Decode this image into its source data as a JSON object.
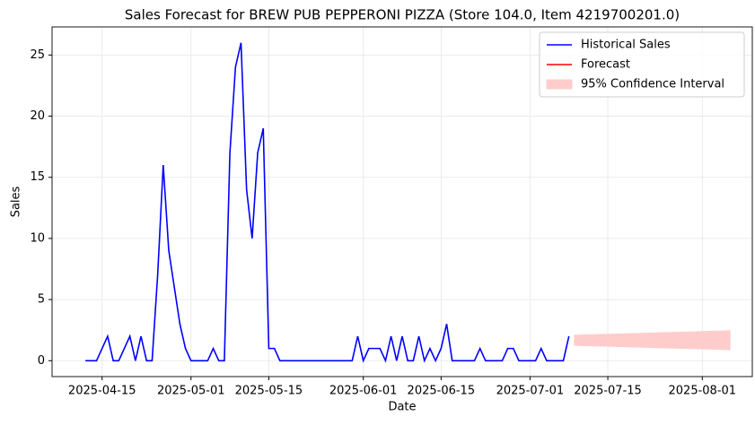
{
  "chart_data": {
    "type": "line",
    "title": "Sales Forecast for BREW PUB PEPPERONI PIZZA (Store 104.0, Item 4219700201.0)",
    "xlabel": "Date",
    "ylabel": "Sales",
    "xlim": [
      "2025-04-06",
      "2025-08-10"
    ],
    "xticks": [
      "2025-04-15",
      "2025-05-01",
      "2025-05-15",
      "2025-06-01",
      "2025-06-15",
      "2025-07-01",
      "2025-07-15",
      "2025-08-01"
    ],
    "ylim": [
      -1.3,
      27.3
    ],
    "yticks": [
      0,
      5,
      10,
      15,
      20,
      25
    ],
    "grid": true,
    "legend": "upper right",
    "series": [
      {
        "name": "Historical Sales",
        "color": "#0000ff",
        "x": [
          "2025-04-12",
          "2025-04-14",
          "2025-04-16",
          "2025-04-17",
          "2025-04-18",
          "2025-04-20",
          "2025-04-21",
          "2025-04-22",
          "2025-04-23",
          "2025-04-24",
          "2025-04-25",
          "2025-04-26",
          "2025-04-27",
          "2025-04-28",
          "2025-04-29",
          "2025-04-30",
          "2025-05-01",
          "2025-05-04",
          "2025-05-05",
          "2025-05-06",
          "2025-05-07",
          "2025-05-08",
          "2025-05-09",
          "2025-05-10",
          "2025-05-11",
          "2025-05-12",
          "2025-05-13",
          "2025-05-14",
          "2025-05-15",
          "2025-05-16",
          "2025-05-17",
          "2025-05-30",
          "2025-05-31",
          "2025-06-01",
          "2025-06-02",
          "2025-06-04",
          "2025-06-05",
          "2025-06-06",
          "2025-06-07",
          "2025-06-08",
          "2025-06-09",
          "2025-06-10",
          "2025-06-11",
          "2025-06-12",
          "2025-06-13",
          "2025-06-14",
          "2025-06-15",
          "2025-06-16",
          "2025-06-17",
          "2025-06-21",
          "2025-06-22",
          "2025-06-23",
          "2025-06-26",
          "2025-06-27",
          "2025-06-28",
          "2025-06-29",
          "2025-07-02",
          "2025-07-03",
          "2025-07-04",
          "2025-07-07",
          "2025-07-08"
        ],
        "values": [
          0,
          0,
          2,
          0,
          0,
          2,
          0,
          2,
          0,
          0,
          7,
          16,
          9,
          6,
          3,
          1,
          0,
          0,
          1,
          0,
          0,
          17,
          24,
          26,
          14,
          10,
          17,
          19,
          1,
          1,
          0,
          0,
          2,
          0,
          1,
          1,
          0,
          2,
          0,
          2,
          0,
          0,
          2,
          0,
          1,
          0,
          1,
          3,
          0,
          0,
          1,
          0,
          0,
          1,
          1,
          0,
          0,
          1,
          0,
          0,
          2
        ]
      },
      {
        "name": "Forecast",
        "color": "#ff0000",
        "x": [
          "2025-07-09",
          "2025-08-06"
        ],
        "values": [
          1.65,
          1.65
        ]
      },
      {
        "name": "95% Confidence Interval",
        "color": "#ffcccc",
        "band": true,
        "x": [
          "2025-07-09",
          "2025-08-06"
        ],
        "lower": [
          1.26,
          0.9
        ],
        "upper": [
          2.08,
          2.45
        ]
      }
    ]
  }
}
